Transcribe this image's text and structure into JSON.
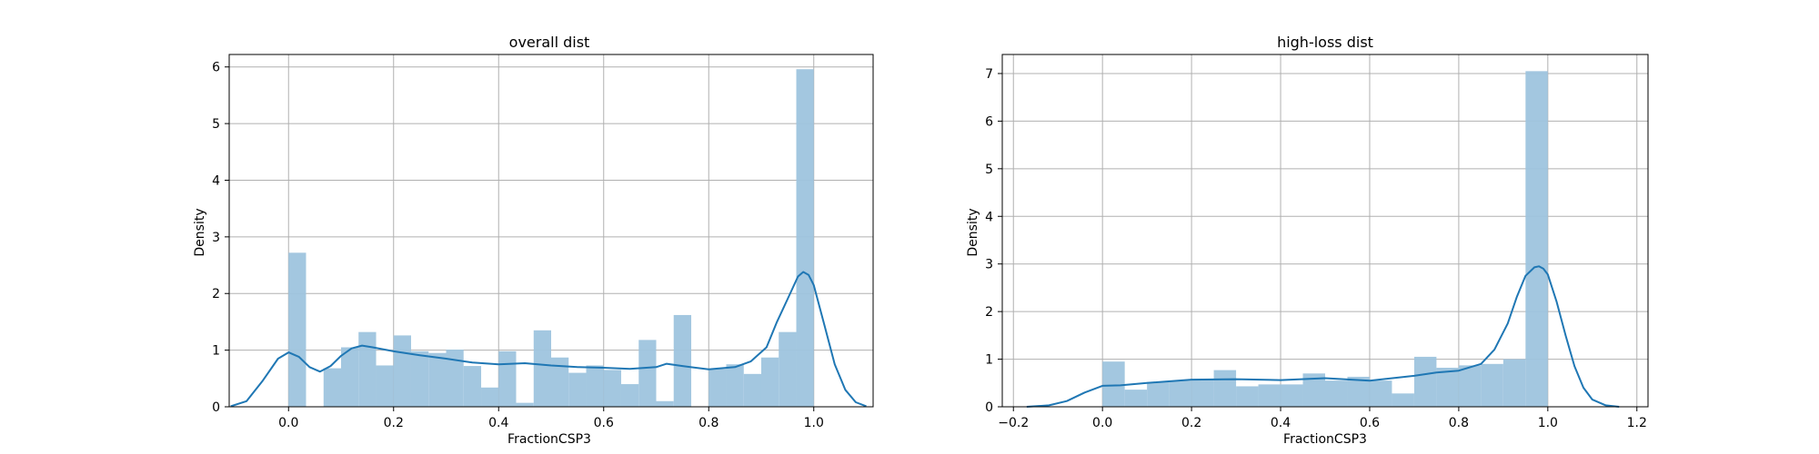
{
  "chart_data": [
    {
      "type": "bar",
      "title": "overall dist",
      "xlabel": "FractionCSP3",
      "ylabel": "Density",
      "xlim": [
        -0.113,
        1.113
      ],
      "ylim": [
        0,
        6.22
      ],
      "xticks": [
        "0.0",
        "0.2",
        "0.4",
        "0.6",
        "0.8",
        "1.0"
      ],
      "yticks": [
        "0",
        "1",
        "2",
        "3",
        "4",
        "5",
        "6"
      ],
      "grid": true,
      "bar_color": "#9ec4de",
      "kde_color": "#1f77b4",
      "bins": [
        {
          "x0": 0.0,
          "x1": 0.0333,
          "value": 2.72
        },
        {
          "x0": 0.0333,
          "x1": 0.0667,
          "value": 0.0
        },
        {
          "x0": 0.0667,
          "x1": 0.1,
          "value": 0.68
        },
        {
          "x0": 0.1,
          "x1": 0.1333,
          "value": 1.05
        },
        {
          "x0": 0.1333,
          "x1": 0.1667,
          "value": 1.32
        },
        {
          "x0": 0.1667,
          "x1": 0.2,
          "value": 0.73
        },
        {
          "x0": 0.2,
          "x1": 0.2333,
          "value": 1.26
        },
        {
          "x0": 0.2333,
          "x1": 0.2667,
          "value": 0.98
        },
        {
          "x0": 0.2667,
          "x1": 0.3,
          "value": 0.95
        },
        {
          "x0": 0.3,
          "x1": 0.3333,
          "value": 1.01
        },
        {
          "x0": 0.3333,
          "x1": 0.3667,
          "value": 0.72
        },
        {
          "x0": 0.3667,
          "x1": 0.4,
          "value": 0.34
        },
        {
          "x0": 0.4,
          "x1": 0.4333,
          "value": 0.98
        },
        {
          "x0": 0.4333,
          "x1": 0.4667,
          "value": 0.07
        },
        {
          "x0": 0.4667,
          "x1": 0.5,
          "value": 1.35
        },
        {
          "x0": 0.5,
          "x1": 0.5333,
          "value": 0.87
        },
        {
          "x0": 0.5333,
          "x1": 0.5667,
          "value": 0.6
        },
        {
          "x0": 0.5667,
          "x1": 0.6,
          "value": 0.73
        },
        {
          "x0": 0.6,
          "x1": 0.6333,
          "value": 0.65
        },
        {
          "x0": 0.6333,
          "x1": 0.6667,
          "value": 0.4
        },
        {
          "x0": 0.6667,
          "x1": 0.7,
          "value": 1.18
        },
        {
          "x0": 0.7,
          "x1": 0.7333,
          "value": 0.1
        },
        {
          "x0": 0.7333,
          "x1": 0.7667,
          "value": 1.62
        },
        {
          "x0": 0.7667,
          "x1": 0.8,
          "value": 0.0
        },
        {
          "x0": 0.8,
          "x1": 0.8333,
          "value": 0.67
        },
        {
          "x0": 0.8333,
          "x1": 0.8667,
          "value": 0.75
        },
        {
          "x0": 0.8667,
          "x1": 0.9,
          "value": 0.58
        },
        {
          "x0": 0.9,
          "x1": 0.9333,
          "value": 0.87
        },
        {
          "x0": 0.9333,
          "x1": 0.9667,
          "value": 1.32
        },
        {
          "x0": 0.9667,
          "x1": 1.0,
          "value": 5.96
        }
      ],
      "kde": {
        "x": [
          -0.11,
          -0.08,
          -0.05,
          -0.02,
          0.0,
          0.02,
          0.04,
          0.06,
          0.08,
          0.1,
          0.12,
          0.14,
          0.16,
          0.2,
          0.25,
          0.3,
          0.35,
          0.4,
          0.45,
          0.5,
          0.55,
          0.6,
          0.65,
          0.7,
          0.72,
          0.75,
          0.8,
          0.85,
          0.88,
          0.91,
          0.93,
          0.95,
          0.97,
          0.98,
          0.99,
          1.0,
          1.02,
          1.04,
          1.06,
          1.08,
          1.1
        ],
        "y": [
          0.01,
          0.1,
          0.45,
          0.85,
          0.96,
          0.88,
          0.7,
          0.62,
          0.72,
          0.9,
          1.03,
          1.08,
          1.05,
          0.98,
          0.91,
          0.85,
          0.78,
          0.75,
          0.77,
          0.73,
          0.7,
          0.69,
          0.67,
          0.7,
          0.76,
          0.72,
          0.66,
          0.7,
          0.8,
          1.05,
          1.5,
          1.9,
          2.3,
          2.38,
          2.33,
          2.15,
          1.45,
          0.75,
          0.3,
          0.08,
          0.01
        ]
      }
    },
    {
      "type": "bar",
      "title": "high-loss dist",
      "xlabel": "FractionCSP3",
      "ylabel": "Density",
      "xlim": [
        -0.225,
        1.225
      ],
      "ylim": [
        0,
        7.4
      ],
      "xticks": [
        "−0.2",
        "0.0",
        "0.2",
        "0.4",
        "0.6",
        "0.8",
        "1.0",
        "1.2"
      ],
      "yticks": [
        "0",
        "1",
        "2",
        "3",
        "4",
        "5",
        "6",
        "7"
      ],
      "grid": true,
      "bar_color": "#9ec4de",
      "kde_color": "#1f77b4",
      "bins": [
        {
          "x0": 0.0,
          "x1": 0.05,
          "value": 0.95
        },
        {
          "x0": 0.05,
          "x1": 0.1,
          "value": 0.36
        },
        {
          "x0": 0.1,
          "x1": 0.15,
          "value": 0.52
        },
        {
          "x0": 0.15,
          "x1": 0.2,
          "value": 0.55
        },
        {
          "x0": 0.2,
          "x1": 0.25,
          "value": 0.57
        },
        {
          "x0": 0.25,
          "x1": 0.3,
          "value": 0.77
        },
        {
          "x0": 0.3,
          "x1": 0.35,
          "value": 0.43
        },
        {
          "x0": 0.35,
          "x1": 0.4,
          "value": 0.47
        },
        {
          "x0": 0.4,
          "x1": 0.45,
          "value": 0.47
        },
        {
          "x0": 0.45,
          "x1": 0.5,
          "value": 0.7
        },
        {
          "x0": 0.5,
          "x1": 0.55,
          "value": 0.55
        },
        {
          "x0": 0.55,
          "x1": 0.6,
          "value": 0.63
        },
        {
          "x0": 0.6,
          "x1": 0.65,
          "value": 0.55
        },
        {
          "x0": 0.65,
          "x1": 0.7,
          "value": 0.28
        },
        {
          "x0": 0.7,
          "x1": 0.75,
          "value": 1.05
        },
        {
          "x0": 0.75,
          "x1": 0.8,
          "value": 0.82
        },
        {
          "x0": 0.8,
          "x1": 0.85,
          "value": 0.87
        },
        {
          "x0": 0.85,
          "x1": 0.9,
          "value": 0.9
        },
        {
          "x0": 0.9,
          "x1": 0.95,
          "value": 1.0
        },
        {
          "x0": 0.95,
          "x1": 1.0,
          "value": 7.05
        }
      ],
      "kde": {
        "x": [
          -0.17,
          -0.12,
          -0.08,
          -0.04,
          0.0,
          0.04,
          0.1,
          0.2,
          0.3,
          0.4,
          0.5,
          0.6,
          0.7,
          0.75,
          0.8,
          0.85,
          0.88,
          0.91,
          0.93,
          0.95,
          0.97,
          0.98,
          0.99,
          1.0,
          1.02,
          1.04,
          1.06,
          1.08,
          1.1,
          1.13,
          1.16
        ],
        "y": [
          0.0,
          0.03,
          0.12,
          0.3,
          0.44,
          0.45,
          0.5,
          0.57,
          0.58,
          0.56,
          0.6,
          0.55,
          0.65,
          0.72,
          0.76,
          0.9,
          1.2,
          1.75,
          2.3,
          2.75,
          2.93,
          2.95,
          2.9,
          2.78,
          2.2,
          1.5,
          0.85,
          0.4,
          0.15,
          0.03,
          0.0
        ]
      }
    }
  ]
}
